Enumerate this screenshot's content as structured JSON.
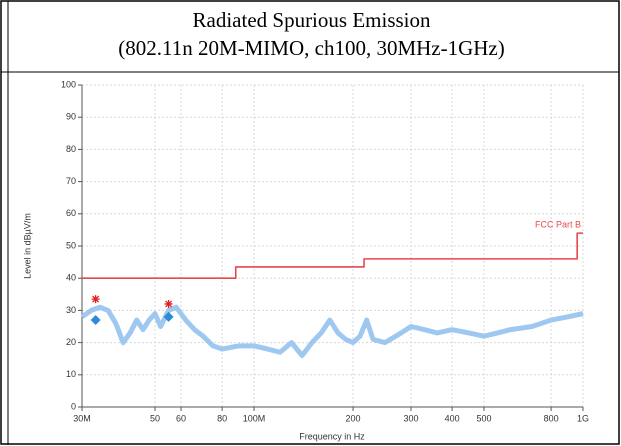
{
  "chart_data": {
    "type": "line",
    "title": "Radiated Spurious Emission",
    "subtitle": "(802.11n 20M-MIMO, ch100, 30MHz-1GHz)",
    "xlabel": "Frequency in Hz",
    "ylabel": "Level in dBµV/m",
    "xscale": "log",
    "grid": true,
    "xlim": [
      30000000,
      1000000000
    ],
    "xticks": [
      {
        "value": 30000000,
        "label": "30M"
      },
      {
        "value": 50000000,
        "label": "50"
      },
      {
        "value": 60000000,
        "label": "60"
      },
      {
        "value": 80000000,
        "label": "80"
      },
      {
        "value": 100000000,
        "label": "100M"
      },
      {
        "value": 200000000,
        "label": "200"
      },
      {
        "value": 300000000,
        "label": "300"
      },
      {
        "value": 400000000,
        "label": "400"
      },
      {
        "value": 500000000,
        "label": "500"
      },
      {
        "value": 800000000,
        "label": "800"
      },
      {
        "value": 1000000000,
        "label": "1G"
      }
    ],
    "ylim": [
      0,
      100
    ],
    "yticks": [
      0,
      10,
      20,
      30,
      40,
      50,
      60,
      70,
      80,
      90,
      100
    ],
    "series": [
      {
        "kind": "noise",
        "color": "#9fc8f0",
        "x": [
          30000000,
          32000000,
          34000000,
          36000000,
          38000000,
          40000000,
          42000000,
          44000000,
          46000000,
          48000000,
          50000000,
          52000000,
          55000000,
          58000000,
          62000000,
          66000000,
          70000000,
          75000000,
          80000000,
          90000000,
          100000000,
          110000000,
          120000000,
          130000000,
          140000000,
          150000000,
          160000000,
          170000000,
          180000000,
          190000000,
          200000000,
          210000000,
          220000000,
          230000000,
          250000000,
          280000000,
          300000000,
          330000000,
          360000000,
          400000000,
          450000000,
          500000000,
          550000000,
          600000000,
          700000000,
          800000000,
          900000000,
          1000000000
        ],
        "values": [
          28,
          30,
          31,
          30,
          26,
          20,
          23,
          27,
          24,
          27,
          29,
          25,
          30,
          31,
          27,
          24,
          22,
          19,
          18,
          19,
          19,
          18,
          17,
          20,
          16,
          20,
          23,
          27,
          23,
          21,
          20,
          22,
          27,
          21,
          20,
          23,
          25,
          24,
          23,
          24,
          23,
          22,
          23,
          24,
          25,
          27,
          28,
          29
        ]
      },
      {
        "kind": "limit",
        "name": "FCC Part B",
        "color": "#e8474a",
        "x": [
          30000000,
          88000000,
          88000000,
          216000000,
          216000000,
          960000000,
          960000000,
          1000000000
        ],
        "values": [
          40,
          40,
          43.5,
          43.5,
          46,
          46,
          54,
          54
        ]
      },
      {
        "kind": "star",
        "color": "#e02020",
        "x": [
          33000000,
          55000000
        ],
        "values": [
          33.5,
          32
        ]
      },
      {
        "kind": "diamond",
        "color": "#2e8bd6",
        "x": [
          33000000,
          55000000
        ],
        "values": [
          27,
          28
        ]
      }
    ]
  }
}
